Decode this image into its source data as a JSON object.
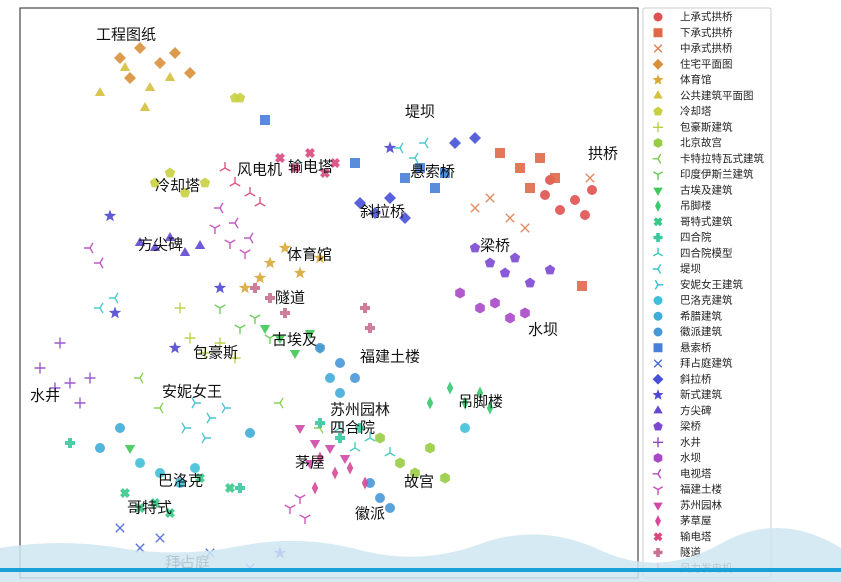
{
  "chart_data": {
    "type": "scatter",
    "xlim": [
      0,
      618
    ],
    "ylim": [
      570,
      0
    ],
    "legend": "outside-right",
    "series": [
      {
        "name": "上承式拱桥",
        "color": "#e05252",
        "marker": "circle",
        "x": [
          525,
          540,
          555,
          565,
          530,
          572
        ],
        "values": [
          187,
          202,
          192,
          207,
          172,
          182
        ]
      },
      {
        "name": "下承式拱桥",
        "color": "#e0684a",
        "marker": "square",
        "x": [
          480,
          500,
          520,
          535,
          510,
          562
        ],
        "values": [
          145,
          160,
          150,
          170,
          180,
          278
        ]
      },
      {
        "name": "中承式拱桥",
        "color": "#e08050",
        "marker": "x",
        "x": [
          455,
          470,
          490,
          570,
          505
        ],
        "values": [
          200,
          190,
          210,
          170,
          220
        ]
      },
      {
        "name": "住宅平面图",
        "color": "#d9903a",
        "marker": "diamond",
        "x": [
          100,
          120,
          140,
          155,
          170,
          110
        ],
        "values": [
          50,
          40,
          55,
          45,
          65,
          70
        ]
      },
      {
        "name": "体育馆",
        "color": "#d8a838",
        "marker": "star",
        "x": [
          250,
          265,
          280,
          300,
          240,
          225
        ],
        "values": [
          255,
          240,
          265,
          250,
          270,
          280
        ]
      },
      {
        "name": "公共建筑平面图",
        "color": "#d4c03c",
        "marker": "triangle",
        "x": [
          105,
          130,
          150,
          80,
          125
        ],
        "values": [
          60,
          80,
          70,
          85,
          100
        ]
      },
      {
        "name": "冷却塔",
        "color": "#c8d040",
        "marker": "pentagon",
        "x": [
          135,
          150,
          165,
          185,
          215,
          220
        ],
        "values": [
          175,
          165,
          185,
          175,
          90,
          90
        ]
      },
      {
        "name": "包豪斯建筑",
        "color": "#b4d040",
        "marker": "plus",
        "x": [
          170,
          185,
          200,
          215,
          160
        ],
        "values": [
          330,
          345,
          335,
          350,
          300
        ]
      },
      {
        "name": "北京故宫",
        "color": "#98cc44",
        "marker": "hexagon",
        "x": [
          380,
          395,
          410,
          425,
          360
        ],
        "values": [
          455,
          465,
          440,
          470,
          430
        ]
      },
      {
        "name": "卡特拉特瓦式建筑",
        "color": "#7ccc48",
        "marker": "tri_left",
        "x": [
          120,
          140,
          260,
          300
        ],
        "values": [
          370,
          400,
          395,
          420
        ]
      },
      {
        "name": "印度伊斯兰建筑",
        "color": "#60c850",
        "marker": "tri_down",
        "x": [
          200,
          220,
          235,
          250
        ],
        "values": [
          300,
          320,
          310,
          330
        ]
      },
      {
        "name": "古埃及建筑",
        "color": "#40c858",
        "marker": "triangle_down",
        "x": [
          245,
          260,
          275,
          290,
          300,
          110
        ],
        "values": [
          320,
          330,
          345,
          325,
          340,
          440
        ]
      },
      {
        "name": "吊脚楼",
        "color": "#38c870",
        "marker": "thin_diamond",
        "x": [
          430,
          445,
          460,
          470,
          410
        ],
        "values": [
          380,
          395,
          385,
          400,
          395
        ]
      },
      {
        "name": "哥特式建筑",
        "color": "#38c888",
        "marker": "x_filled",
        "x": [
          105,
          120,
          135,
          150,
          180,
          210
        ],
        "values": [
          485,
          500,
          495,
          505,
          470,
          480
        ]
      },
      {
        "name": "四合院",
        "color": "#38c8a0",
        "marker": "plus_filled",
        "x": [
          50,
          300,
          320,
          340,
          220
        ],
        "values": [
          435,
          415,
          430,
          420,
          480
        ]
      },
      {
        "name": "四合院模型",
        "color": "#38c8b8",
        "marker": "tri_up",
        "x": [
          320,
          335,
          350,
          370
        ],
        "values": [
          420,
          440,
          430,
          445
        ]
      },
      {
        "name": "堤坝",
        "color": "#38c4c8",
        "marker": "tri_left",
        "x": [
          80,
          95,
          380,
          395,
          405
        ],
        "values": [
          300,
          290,
          140,
          150,
          135
        ]
      },
      {
        "name": "安妮女王建筑",
        "color": "#38bcd0",
        "marker": "tri_right",
        "x": [
          175,
          190,
          205,
          165,
          185
        ],
        "values": [
          395,
          410,
          400,
          420,
          430
        ]
      },
      {
        "name": "巴洛克建筑",
        "color": "#40c0d8",
        "marker": "circle",
        "x": [
          120,
          140,
          160,
          175,
          445
        ],
        "values": [
          455,
          465,
          475,
          460,
          420
        ]
      },
      {
        "name": "希腊建筑",
        "color": "#40acd8",
        "marker": "circle",
        "x": [
          100,
          80,
          230,
          310,
          320
        ],
        "values": [
          420,
          440,
          425,
          370,
          385
        ]
      },
      {
        "name": "徽派建筑",
        "color": "#4898d8",
        "marker": "circle",
        "x": [
          300,
          320,
          335,
          350,
          360,
          370
        ],
        "values": [
          340,
          355,
          370,
          475,
          490,
          500
        ]
      },
      {
        "name": "悬索桥",
        "color": "#4880d8",
        "marker": "square",
        "x": [
          385,
          400,
          415,
          425,
          335,
          245
        ],
        "values": [
          170,
          160,
          180,
          165,
          155,
          112
        ]
      },
      {
        "name": "拜占庭建筑",
        "color": "#4868d8",
        "marker": "x",
        "x": [
          100,
          120,
          140,
          160,
          190,
          230
        ],
        "values": [
          520,
          540,
          530,
          555,
          545,
          560
        ]
      },
      {
        "name": "斜拉桥",
        "color": "#4850d8",
        "marker": "diamond",
        "x": [
          340,
          355,
          370,
          385,
          435,
          455
        ],
        "values": [
          195,
          205,
          190,
          210,
          135,
          130
        ]
      },
      {
        "name": "新式建筑",
        "color": "#5048d0",
        "marker": "star",
        "x": [
          90,
          95,
          155,
          200,
          260,
          370
        ],
        "values": [
          208,
          305,
          340,
          280,
          545,
          140
        ]
      },
      {
        "name": "方尖碑",
        "color": "#6448d0",
        "marker": "triangle",
        "x": [
          120,
          135,
          150,
          165,
          180
        ],
        "values": [
          235,
          240,
          230,
          245,
          238
        ]
      },
      {
        "name": "梁桥",
        "color": "#7c48d0",
        "marker": "pentagon",
        "x": [
          455,
          470,
          485,
          495,
          510,
          530
        ],
        "values": [
          240,
          255,
          265,
          250,
          275,
          262
        ]
      },
      {
        "name": "水井",
        "color": "#9048c8",
        "marker": "plus",
        "x": [
          20,
          35,
          50,
          60,
          70,
          40
        ],
        "values": [
          360,
          380,
          375,
          395,
          370,
          335
        ]
      },
      {
        "name": "水坝",
        "color": "#a848c8",
        "marker": "hexagon",
        "x": [
          440,
          460,
          475,
          490,
          505
        ],
        "values": [
          285,
          300,
          295,
          310,
          305
        ]
      },
      {
        "name": "电视塔",
        "color": "#b848c0",
        "marker": "tri_left",
        "x": [
          200,
          215,
          230,
          80,
          70
        ],
        "values": [
          200,
          215,
          230,
          255,
          240
        ]
      },
      {
        "name": "福建土楼",
        "color": "#c848b8",
        "marker": "tri_down",
        "x": [
          195,
          210,
          225,
          270,
          285,
          280
        ],
        "values": [
          220,
          235,
          245,
          500,
          510,
          490
        ]
      },
      {
        "name": "苏州园林",
        "color": "#d048a8",
        "marker": "triangle_down",
        "x": [
          280,
          295,
          310,
          325,
          290
        ],
        "values": [
          420,
          435,
          440,
          450,
          455
        ]
      },
      {
        "name": "茅草屋",
        "color": "#d84898",
        "marker": "thin_diamond",
        "x": [
          300,
          315,
          330,
          345,
          295
        ],
        "values": [
          450,
          465,
          460,
          475,
          480
        ]
      },
      {
        "name": "输电塔",
        "color": "#d84880",
        "marker": "x_filled",
        "x": [
          260,
          275,
          290,
          305,
          315
        ],
        "values": [
          150,
          160,
          145,
          165,
          155
        ]
      },
      {
        "name": "隧道",
        "color": "#c87090",
        "marker": "plus_filled",
        "x": [
          235,
          250,
          265,
          345,
          350
        ],
        "values": [
          280,
          290,
          305,
          300,
          320
        ]
      },
      {
        "name": "风力发电机",
        "color": "#d84870",
        "marker": "tri_up",
        "x": [
          205,
          215,
          230,
          240
        ],
        "values": [
          160,
          175,
          185,
          195
        ]
      }
    ],
    "annotations": [
      {
        "text": "工程图纸",
        "x": 76,
        "y": 27
      },
      {
        "text": "堤坝",
        "x": 385,
        "y": 104
      },
      {
        "text": "拱桥",
        "x": 568,
        "y": 146
      },
      {
        "text": "风电机",
        "x": 217,
        "y": 162
      },
      {
        "text": "输电塔",
        "x": 268,
        "y": 159
      },
      {
        "text": "悬索桥",
        "x": 390,
        "y": 164
      },
      {
        "text": "冷却塔",
        "x": 135,
        "y": 178
      },
      {
        "text": "斜拉桥",
        "x": 340,
        "y": 204
      },
      {
        "text": "方尖碑",
        "x": 118,
        "y": 237
      },
      {
        "text": "梁桥",
        "x": 460,
        "y": 238
      },
      {
        "text": "体育馆",
        "x": 267,
        "y": 247
      },
      {
        "text": "隧道",
        "x": 255,
        "y": 290
      },
      {
        "text": "水坝",
        "x": 508,
        "y": 322
      },
      {
        "text": "古埃及",
        "x": 252,
        "y": 332
      },
      {
        "text": "包豪斯",
        "x": 173,
        "y": 345
      },
      {
        "text": "福建土楼",
        "x": 340,
        "y": 349
      },
      {
        "text": "水井",
        "x": 10,
        "y": 388
      },
      {
        "text": "安妮女王",
        "x": 142,
        "y": 384
      },
      {
        "text": "吊脚楼",
        "x": 438,
        "y": 394
      },
      {
        "text": "苏州园林",
        "x": 310,
        "y": 402
      },
      {
        "text": "四合院",
        "x": 310,
        "y": 420
      },
      {
        "text": "茅屋",
        "x": 275,
        "y": 455
      },
      {
        "text": "巴洛克",
        "x": 138,
        "y": 473
      },
      {
        "text": "故宫",
        "x": 384,
        "y": 474
      },
      {
        "text": "哥特式",
        "x": 107,
        "y": 500
      },
      {
        "text": "徽派",
        "x": 335,
        "y": 506
      },
      {
        "text": "拜占庭",
        "x": 145,
        "y": 555
      }
    ]
  }
}
